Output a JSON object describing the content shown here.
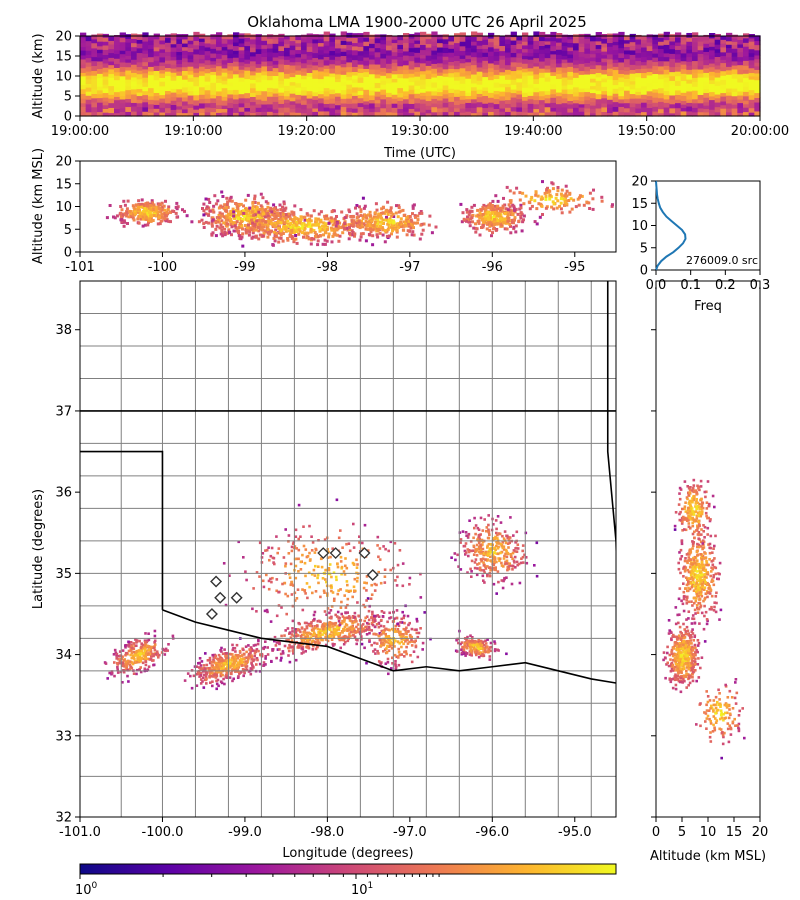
{
  "chart_data": [
    {
      "type": "heatmap",
      "name": "time-height",
      "title": "Oklahoma LMA 1900-2000 UTC 26 April 2025",
      "xlabel": "Time (UTC)",
      "ylabel": "Altitude (km)",
      "xticks": [
        "19:00:00",
        "19:10:00",
        "19:20:00",
        "19:30:00",
        "19:40:00",
        "19:50:00",
        "20:00:00"
      ],
      "yticks": [
        0,
        5,
        10,
        15,
        20
      ],
      "ylim": [
        0,
        20
      ]
    },
    {
      "type": "heatmap",
      "name": "longitude-height",
      "ylabel": "Altitude (km MSL)",
      "xticks": [
        -101,
        -100,
        -99,
        -98,
        -97,
        -96,
        -95
      ],
      "yticks": [
        0,
        5,
        10,
        15,
        20
      ],
      "xlim": [
        -101,
        -94.5
      ],
      "ylim": [
        0,
        20
      ]
    },
    {
      "type": "line",
      "name": "altitude-histogram",
      "xlabel": "Freq",
      "xticks": [
        "0.0",
        "0.1",
        "0.2",
        "0.3"
      ],
      "yticks": [
        0,
        5,
        10,
        15,
        20
      ],
      "xlim": [
        0,
        0.3
      ],
      "ylim": [
        0,
        20
      ],
      "annotation": "276009.0 src",
      "y": [
        0,
        1,
        2,
        3,
        4,
        5,
        6,
        7,
        8,
        9,
        10,
        11,
        12,
        13,
        14,
        15,
        16,
        17,
        18,
        19,
        20
      ],
      "x": [
        0.0,
        0.005,
        0.015,
        0.03,
        0.05,
        0.065,
        0.078,
        0.085,
        0.084,
        0.075,
        0.06,
        0.045,
        0.03,
        0.02,
        0.012,
        0.008,
        0.005,
        0.003,
        0.002,
        0.001,
        0.0
      ]
    },
    {
      "type": "heatmap",
      "name": "plan-view",
      "xlabel": "Longitude (degrees)",
      "ylabel": "Latitude (degrees)",
      "xticks": [
        "-101.0",
        "-100.0",
        "-99.0",
        "-98.0",
        "-97.0",
        "-96.0",
        "-95.0"
      ],
      "yticks": [
        32,
        33,
        34,
        35,
        36,
        37,
        38
      ],
      "xlim": [
        -101,
        -94.5
      ],
      "ylim": [
        32,
        38.6
      ]
    },
    {
      "type": "heatmap",
      "name": "height-latitude",
      "xlabel": "Altitude (km MSL)",
      "xticks": [
        0,
        5,
        10,
        15,
        20
      ],
      "xlim": [
        0,
        20
      ],
      "ylim": [
        32,
        38.6
      ]
    },
    {
      "type": "colorbar",
      "name": "colorbar",
      "colormap": "plasma",
      "scale": "log",
      "ticks": [
        "10",
        "10"
      ],
      "tick_exponents": [
        "0",
        "1"
      ]
    }
  ],
  "colors": {
    "plasma": [
      "#0d0887",
      "#5c01a6",
      "#9c179e",
      "#cc4778",
      "#ed7953",
      "#fdb42f",
      "#f0f921"
    ],
    "histogram_line": "#1f77b4",
    "state_border": "#000000",
    "county_border": "#808080"
  }
}
